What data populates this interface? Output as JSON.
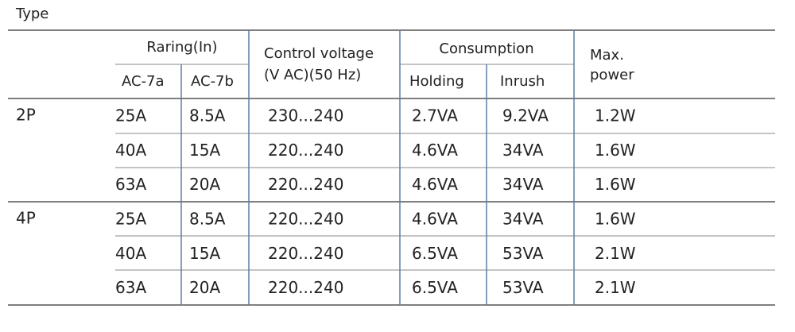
{
  "title": "Type",
  "header": {
    "rating": "Raring(In)",
    "ac7a": "AC-7a",
    "ac7b": "AC-7b",
    "control_voltage": [
      "Control voltage",
      "(V AC)(50 Hz)"
    ],
    "consumption": "Consumption",
    "holding": "Holding",
    "inrush": "Inrush",
    "max_power": [
      "Max.",
      "power"
    ]
  },
  "groups": [
    {
      "type": "2P",
      "rows": [
        [
          "25A",
          "8.5A",
          "230...240",
          "2.7VA",
          "9.2VA",
          "1.2W"
        ],
        [
          "40A",
          "15A",
          "220...240",
          "4.6VA",
          "34VA",
          "1.6W"
        ],
        [
          "63A",
          "20A",
          "220...240",
          "4.6VA",
          "34VA",
          "1.6W"
        ]
      ]
    },
    {
      "type": "4P",
      "rows": [
        [
          "25A",
          "8.5A",
          "220...240",
          "4.6VA",
          "34VA",
          "1.6W"
        ],
        [
          "40A",
          "15A",
          "220...240",
          "6.5VA",
          "53VA",
          "2.1W"
        ],
        [
          "63A",
          "20A",
          "220...240",
          "6.5VA",
          "53VA",
          "2.1W"
        ]
      ]
    }
  ]
}
